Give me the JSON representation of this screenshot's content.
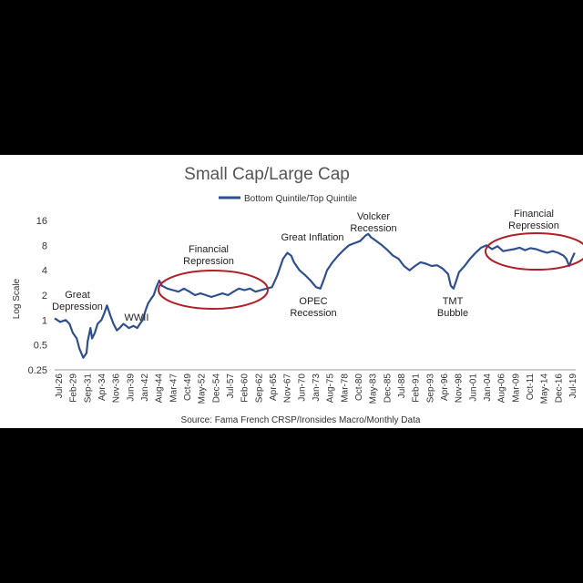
{
  "chart_data": {
    "type": "line",
    "title": "Small Cap/Large Cap",
    "ylabel": "Log Scale",
    "xlabel": "",
    "y_scale": "log2",
    "ylim": [
      0.25,
      16
    ],
    "yticks": [
      "16",
      "8",
      "4",
      "2",
      "1",
      "0.5",
      "0.25"
    ],
    "ytick_values": [
      16,
      8,
      4,
      2,
      1,
      0.5,
      0.25
    ],
    "grid": false,
    "legend_position": "top-center",
    "line_color": "#2f4f8f",
    "circle_color": "#b0202a",
    "source": "Source: Fama French CRSP/Ironsides Macro/Monthly Data",
    "x_tick_labels": [
      "Jul-26",
      "Feb-29",
      "Sep-31",
      "Apr-34",
      "Nov-36",
      "Jun-39",
      "Jan-42",
      "Aug-44",
      "Mar-47",
      "Oct-49",
      "May-52",
      "Dec-54",
      "Jul-57",
      "Feb-60",
      "Sep-62",
      "Apr-65",
      "Nov-67",
      "Jun-70",
      "Jan-73",
      "Aug-75",
      "Mar-78",
      "Oct-80",
      "May-83",
      "Dec-85",
      "Jul-88",
      "Feb-91",
      "Sep-93",
      "Apr-96",
      "Nov-98",
      "Jun-01",
      "Jan-04",
      "Aug-06",
      "Mar-09",
      "Oct-11",
      "May-14",
      "Dec-16",
      "Jul-19"
    ],
    "series": [
      {
        "name": "Bottom Quintile/Top Quintile",
        "x": [
          1926.5,
          1927.5,
          1928.5,
          1929.2,
          1929.8,
          1930.5,
          1931.0,
          1931.7,
          1932.3,
          1932.5,
          1933.0,
          1933.3,
          1933.8,
          1934.3,
          1935.0,
          1935.5,
          1936.0,
          1936.7,
          1937.2,
          1937.8,
          1938.3,
          1939.0,
          1939.5,
          1940.0,
          1940.8,
          1941.5,
          1942.0,
          1942.5,
          1943.0,
          1943.5,
          1944.0,
          1944.5,
          1945.0,
          1945.5,
          1946.0,
          1947.0,
          1948.0,
          1949.0,
          1950.0,
          1951.0,
          1952.0,
          1953.0,
          1954.0,
          1955.0,
          1956.0,
          1957.0,
          1958.0,
          1959.0,
          1960.0,
          1961.0,
          1962.0,
          1963.0,
          1964.0,
          1965.0,
          1966.0,
          1967.0,
          1968.0,
          1968.8,
          1969.5,
          1970.0,
          1971.0,
          1972.0,
          1973.0,
          1974.0,
          1974.8,
          1975.5,
          1976.0,
          1977.0,
          1978.0,
          1979.0,
          1980.0,
          1981.0,
          1982.0,
          1983.0,
          1983.5,
          1984.0,
          1985.0,
          1986.0,
          1987.0,
          1988.0,
          1989.0,
          1990.0,
          1991.0,
          1992.0,
          1993.0,
          1994.0,
          1995.0,
          1996.0,
          1997.0,
          1998.0,
          1998.5,
          1999.0,
          1999.5,
          2000.0,
          2001.0,
          2002.0,
          2003.0,
          2004.0,
          2005.0,
          2006.0,
          2007.0,
          2008.0,
          2009.0,
          2010.0,
          2011.0,
          2012.0,
          2013.0,
          2014.0,
          2015.0,
          2016.0,
          2017.0,
          2018.0,
          2019.0,
          2019.5,
          2020.0,
          2020.5,
          2021.0
        ],
        "values": [
          1.05,
          0.95,
          1.0,
          0.9,
          0.7,
          0.6,
          0.45,
          0.35,
          0.4,
          0.55,
          0.8,
          0.6,
          0.7,
          0.9,
          1.0,
          1.2,
          1.5,
          1.1,
          0.9,
          0.75,
          0.8,
          0.9,
          0.85,
          0.8,
          0.85,
          0.8,
          0.9,
          1.0,
          1.3,
          1.6,
          1.8,
          2.0,
          2.5,
          3.0,
          2.6,
          2.4,
          2.3,
          2.2,
          2.4,
          2.2,
          2.0,
          2.1,
          2.0,
          1.9,
          2.0,
          2.1,
          2.0,
          2.2,
          2.4,
          2.3,
          2.4,
          2.2,
          2.3,
          2.4,
          2.5,
          3.5,
          5.5,
          6.5,
          6.0,
          5.0,
          4.0,
          3.5,
          3.0,
          2.5,
          2.4,
          3.2,
          4.0,
          5.0,
          6.0,
          7.0,
          8.0,
          8.5,
          9.0,
          10.5,
          11.0,
          10.0,
          9.0,
          8.0,
          7.0,
          6.0,
          5.5,
          4.5,
          4.0,
          4.5,
          5.0,
          4.8,
          4.5,
          4.6,
          4.2,
          3.6,
          2.6,
          2.4,
          3.0,
          3.8,
          4.5,
          5.5,
          6.5,
          7.5,
          8.0,
          7.2,
          7.8,
          6.8,
          7.0,
          7.2,
          7.5,
          7.0,
          7.4,
          7.2,
          6.8,
          6.5,
          6.8,
          6.5,
          6.0,
          5.5,
          4.5,
          5.5,
          6.5
        ]
      }
    ],
    "annotations": [
      {
        "lines": [
          "Great",
          "Depression"
        ]
      },
      {
        "lines": [
          "WWII"
        ]
      },
      {
        "lines": [
          "Financial",
          "Repression"
        ]
      },
      {
        "lines": [
          "Great Inflation"
        ]
      },
      {
        "lines": [
          "OPEC",
          "Recession"
        ]
      },
      {
        "lines": [
          "Volcker",
          "Recession"
        ]
      },
      {
        "lines": [
          "TMT",
          "Bubble"
        ]
      },
      {
        "lines": [
          "Financial",
          "Repression"
        ]
      }
    ]
  }
}
